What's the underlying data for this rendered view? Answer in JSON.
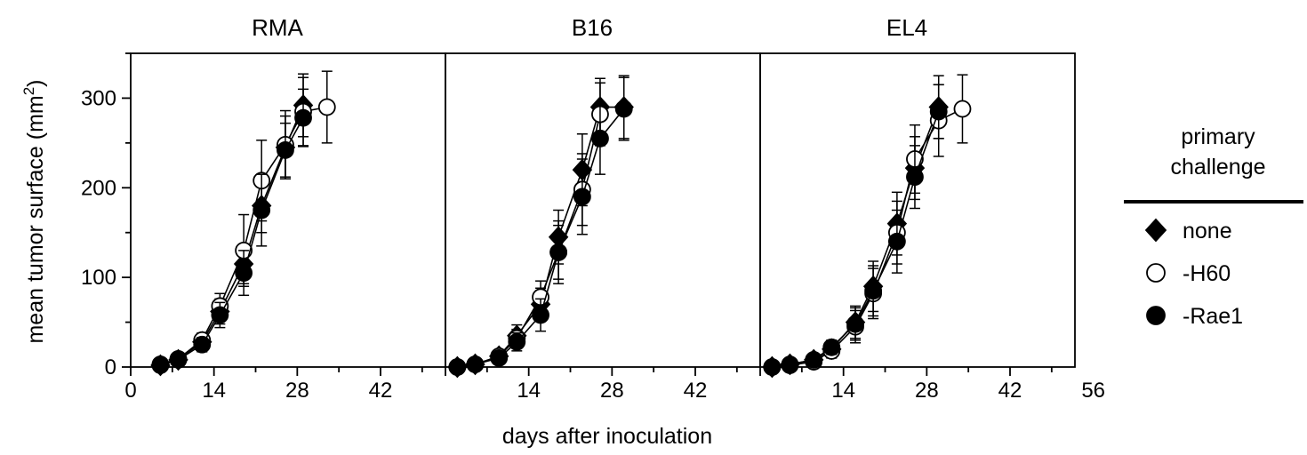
{
  "chart_data": {
    "type": "line",
    "xlabel": "days after inoculation",
    "ylabel": "mean tumor surface (mm",
    "ylabel_sup": "2",
    "ylabel_close": ")",
    "xlim": [
      0,
      56
    ],
    "ylim": [
      0,
      350
    ],
    "y_ticks": [
      0,
      100,
      200,
      300
    ],
    "grid": false,
    "legend": {
      "title_lines": [
        "primary",
        "challenge"
      ],
      "placement": "right",
      "entries": [
        {
          "label": "none",
          "marker": "diamond",
          "fill": "#000000"
        },
        {
          "label": "-H60",
          "marker": "circle",
          "fill": "#ffffff"
        },
        {
          "label": "-Rae1",
          "marker": "circle",
          "fill": "#000000"
        }
      ]
    },
    "panels": [
      {
        "title": "RMA",
        "x_ticks": [
          "0",
          "14",
          "28",
          "42"
        ],
        "series": [
          {
            "name": "none",
            "points": [
              {
                "x": 5,
                "y": 2,
                "err": 2
              },
              {
                "x": 8,
                "y": 8,
                "err": 3
              },
              {
                "x": 12,
                "y": 28,
                "err": 8
              },
              {
                "x": 15,
                "y": 62,
                "err": 14
              },
              {
                "x": 19,
                "y": 115,
                "err": 22
              },
              {
                "x": 22,
                "y": 180,
                "err": 30
              },
              {
                "x": 26,
                "y": 245,
                "err": 35
              },
              {
                "x": 29,
                "y": 292,
                "err": 35
              }
            ]
          },
          {
            "name": "-H60",
            "points": [
              {
                "x": 5,
                "y": 3,
                "err": 2
              },
              {
                "x": 8,
                "y": 9,
                "err": 3
              },
              {
                "x": 12,
                "y": 30,
                "err": 8
              },
              {
                "x": 15,
                "y": 68,
                "err": 14
              },
              {
                "x": 19,
                "y": 130,
                "err": 40
              },
              {
                "x": 22,
                "y": 208,
                "err": 45
              },
              {
                "x": 26,
                "y": 248,
                "err": 38
              },
              {
                "x": 29,
                "y": 285,
                "err": 38
              },
              {
                "x": 33,
                "y": 290,
                "err": 40
              }
            ]
          },
          {
            "name": "-Rae1",
            "points": [
              {
                "x": 5,
                "y": 2,
                "err": 2
              },
              {
                "x": 8,
                "y": 8,
                "err": 3
              },
              {
                "x": 12,
                "y": 25,
                "err": 8
              },
              {
                "x": 15,
                "y": 58,
                "err": 14
              },
              {
                "x": 19,
                "y": 105,
                "err": 25
              },
              {
                "x": 22,
                "y": 175,
                "err": 40
              },
              {
                "x": 26,
                "y": 242,
                "err": 30
              },
              {
                "x": 29,
                "y": 278,
                "err": 32
              }
            ]
          }
        ]
      },
      {
        "title": "B16",
        "x_ticks": [
          "14",
          "28",
          "42"
        ],
        "series": [
          {
            "name": "none",
            "points": [
              {
                "x": 2,
                "y": 0,
                "err": 1
              },
              {
                "x": 5,
                "y": 3,
                "err": 2
              },
              {
                "x": 9,
                "y": 12,
                "err": 4
              },
              {
                "x": 12,
                "y": 35,
                "err": 12
              },
              {
                "x": 16,
                "y": 70,
                "err": 18
              },
              {
                "x": 19,
                "y": 145,
                "err": 30
              },
              {
                "x": 23,
                "y": 220,
                "err": 40
              },
              {
                "x": 26,
                "y": 290,
                "err": 32
              },
              {
                "x": 30,
                "y": 290,
                "err": 35
              }
            ]
          },
          {
            "name": "-H60",
            "points": [
              {
                "x": 2,
                "y": 0,
                "err": 1
              },
              {
                "x": 5,
                "y": 3,
                "err": 2
              },
              {
                "x": 9,
                "y": 12,
                "err": 4
              },
              {
                "x": 12,
                "y": 32,
                "err": 10
              },
              {
                "x": 16,
                "y": 78,
                "err": 18
              },
              {
                "x": 19,
                "y": 128,
                "err": 35
              },
              {
                "x": 23,
                "y": 198,
                "err": 40
              },
              {
                "x": 26,
                "y": 282,
                "err": 35
              }
            ]
          },
          {
            "name": "-Rae1",
            "points": [
              {
                "x": 2,
                "y": 0,
                "err": 1
              },
              {
                "x": 5,
                "y": 3,
                "err": 2
              },
              {
                "x": 9,
                "y": 10,
                "err": 4
              },
              {
                "x": 12,
                "y": 28,
                "err": 10
              },
              {
                "x": 16,
                "y": 58,
                "err": 18
              },
              {
                "x": 19,
                "y": 128,
                "err": 30
              },
              {
                "x": 23,
                "y": 190,
                "err": 42
              },
              {
                "x": 26,
                "y": 255,
                "err": 40
              },
              {
                "x": 30,
                "y": 288,
                "err": 35
              }
            ]
          }
        ]
      },
      {
        "title": "EL4",
        "x_ticks": [
          "14",
          "28",
          "42",
          "56"
        ],
        "series": [
          {
            "name": "none",
            "points": [
              {
                "x": 2,
                "y": 0,
                "err": 1
              },
              {
                "x": 5,
                "y": 3,
                "err": 2
              },
              {
                "x": 9,
                "y": 8,
                "err": 4
              },
              {
                "x": 12,
                "y": 20,
                "err": 8
              },
              {
                "x": 16,
                "y": 50,
                "err": 18
              },
              {
                "x": 19,
                "y": 90,
                "err": 28
              },
              {
                "x": 23,
                "y": 160,
                "err": 35
              },
              {
                "x": 26,
                "y": 222,
                "err": 35
              },
              {
                "x": 30,
                "y": 290,
                "err": 35
              }
            ]
          },
          {
            "name": "-H60",
            "points": [
              {
                "x": 2,
                "y": 0,
                "err": 1
              },
              {
                "x": 5,
                "y": 2,
                "err": 2
              },
              {
                "x": 9,
                "y": 6,
                "err": 4
              },
              {
                "x": 12,
                "y": 18,
                "err": 8
              },
              {
                "x": 16,
                "y": 45,
                "err": 18
              },
              {
                "x": 19,
                "y": 82,
                "err": 28
              },
              {
                "x": 23,
                "y": 150,
                "err": 35
              },
              {
                "x": 26,
                "y": 232,
                "err": 38
              },
              {
                "x": 30,
                "y": 275,
                "err": 40
              },
              {
                "x": 34,
                "y": 288,
                "err": 38
              }
            ]
          },
          {
            "name": "-Rae1",
            "points": [
              {
                "x": 2,
                "y": 0,
                "err": 1
              },
              {
                "x": 5,
                "y": 3,
                "err": 2
              },
              {
                "x": 9,
                "y": 8,
                "err": 4
              },
              {
                "x": 12,
                "y": 22,
                "err": 8
              },
              {
                "x": 16,
                "y": 48,
                "err": 18
              },
              {
                "x": 19,
                "y": 85,
                "err": 28
              },
              {
                "x": 23,
                "y": 140,
                "err": 35
              },
              {
                "x": 26,
                "y": 212,
                "err": 35
              },
              {
                "x": 30,
                "y": 285,
                "err": 30
              }
            ]
          }
        ]
      }
    ]
  }
}
